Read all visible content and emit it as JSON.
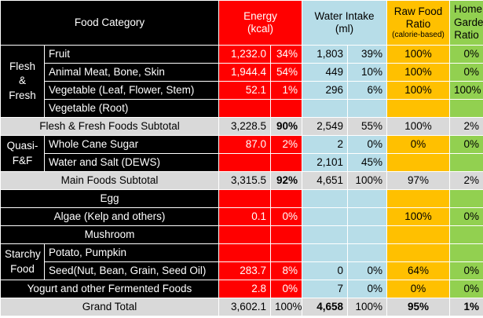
{
  "header": {
    "food_category": "Food Category",
    "energy": "Energy",
    "energy_unit": "(kcal)",
    "water": "Water Intake",
    "water_unit": "(ml)",
    "raw_food": "Raw Food",
    "raw_ratio": "Ratio",
    "raw_basis": "(calorie-based)",
    "home": "Home",
    "garden": "Garden",
    "home_ratio": "Ratio"
  },
  "groups": {
    "flesh_fresh": [
      "Flesh",
      "&",
      "Fresh"
    ],
    "quasi": [
      "Quasi-",
      "F&F"
    ],
    "starchy": [
      "Starchy",
      "Food"
    ]
  },
  "rows": [
    {
      "label": "Fruit",
      "energy": "1,232.0",
      "energy_pct": "34%",
      "water": "1,803",
      "water_pct": "39%",
      "raw": "100%",
      "home": "0%"
    },
    {
      "label": "Animal Meat, Bone, Skin",
      "energy": "1,944.4",
      "energy_pct": "54%",
      "water": "449",
      "water_pct": "10%",
      "raw": "100%",
      "home": "0%"
    },
    {
      "label": "Vegetable (Leaf, Flower, Stem)",
      "energy": "52.1",
      "energy_pct": "1%",
      "water": "296",
      "water_pct": "6%",
      "raw": "100%",
      "home": "100%"
    },
    {
      "label": "Vegetable (Root)",
      "energy": "",
      "energy_pct": "",
      "water": "",
      "water_pct": "",
      "raw": "",
      "home": ""
    },
    {
      "label": "Flesh & Fresh Foods Subtotal",
      "energy": "3,228.5",
      "energy_pct": "90%",
      "water": "2,549",
      "water_pct": "55%",
      "raw": "100%",
      "home": "2%"
    },
    {
      "label": "Whole Cane Sugar",
      "energy": "87.0",
      "energy_pct": "2%",
      "water": "2",
      "water_pct": "0%",
      "raw": "0%",
      "home": "0%"
    },
    {
      "label": "Water and Salt (DEWS)",
      "energy": "",
      "energy_pct": "",
      "water": "2,101",
      "water_pct": "45%",
      "raw": "",
      "home": ""
    },
    {
      "label": "Main Foods Subtotal",
      "energy": "3,315.5",
      "energy_pct": "92%",
      "water": "4,651",
      "water_pct": "100%",
      "raw": "97%",
      "home": "2%"
    },
    {
      "label": "Egg",
      "energy": "",
      "energy_pct": "",
      "water": "",
      "water_pct": "",
      "raw": "",
      "home": ""
    },
    {
      "label": "Algae (Kelp and others)",
      "energy": "0.1",
      "energy_pct": "0%",
      "water": "",
      "water_pct": "",
      "raw": "100%",
      "home": "0%"
    },
    {
      "label": "Mushroom",
      "energy": "",
      "energy_pct": "",
      "water": "",
      "water_pct": "",
      "raw": "",
      "home": ""
    },
    {
      "label": "Potato, Pumpkin",
      "energy": "",
      "energy_pct": "",
      "water": "",
      "water_pct": "",
      "raw": "",
      "home": ""
    },
    {
      "label": "Seed(Nut, Bean, Grain, Seed Oil)",
      "energy": "283.7",
      "energy_pct": "8%",
      "water": "0",
      "water_pct": "0%",
      "raw": "64%",
      "home": "0%"
    },
    {
      "label": "Yogurt and other Fermented Foods",
      "energy": "2.8",
      "energy_pct": "0%",
      "water": "7",
      "water_pct": "0%",
      "raw": "0%",
      "home": "0%"
    },
    {
      "label": "Grand Total",
      "energy": "3,602.1",
      "energy_pct": "100%",
      "water": "4,658",
      "water_pct": "100%",
      "raw": "95%",
      "home": "1%"
    }
  ],
  "colors": {
    "category": "#000000",
    "energy": "#ff0000",
    "water": "#b7dde8",
    "raw": "#ffc000",
    "home": "#92d050",
    "subtotal": "#d9d9d9"
  }
}
